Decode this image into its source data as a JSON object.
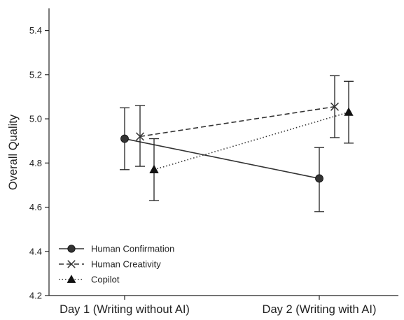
{
  "chart_data": {
    "type": "line",
    "title": "",
    "xlabel": "",
    "ylabel": "Overall Quality",
    "categories": [
      "Day 1 (Writing without AI)",
      "Day 2 (Writing with AI)"
    ],
    "ylim": [
      4.2,
      5.5
    ],
    "yticks": [
      4.2,
      4.4,
      4.6,
      4.8,
      5.0,
      5.2,
      5.4
    ],
    "ytick_labels": [
      "4.2",
      "4.4",
      "4.6",
      "4.8",
      "5.0",
      "5.2",
      "5.4"
    ],
    "grid": false,
    "legend_position": "bottom-left",
    "series": [
      {
        "name": "Human Confirmation",
        "marker": "circle",
        "line_style": "solid",
        "values": [
          4.91,
          4.73
        ],
        "error_low": [
          4.77,
          4.58
        ],
        "error_high": [
          5.05,
          4.87
        ]
      },
      {
        "name": "Human Creativity",
        "marker": "x",
        "line_style": "dashed",
        "values": [
          4.92,
          5.055
        ],
        "error_low": [
          4.785,
          4.915
        ],
        "error_high": [
          5.06,
          5.195
        ]
      },
      {
        "name": "Copilot",
        "marker": "triangle",
        "line_style": "dotted",
        "values": [
          4.77,
          5.03
        ],
        "error_low": [
          4.63,
          4.89
        ],
        "error_high": [
          4.91,
          5.17
        ]
      }
    ]
  }
}
